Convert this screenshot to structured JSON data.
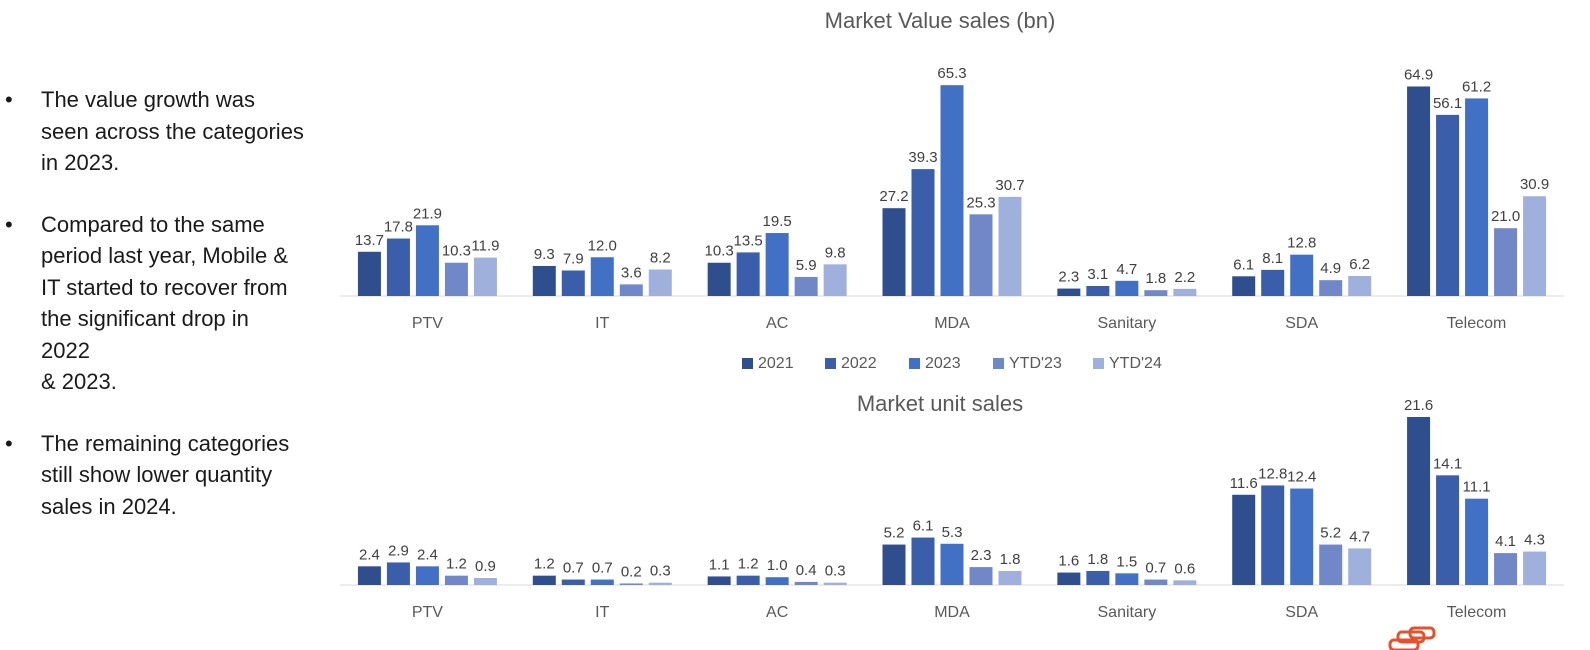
{
  "bullets": [
    {
      "text": "The value growth was\nseen across the categories\nin 2023."
    },
    {
      "text": "Compared to the same\nperiod last year, Mobile &\nIT started to recover from\nthe significant drop in\n2022\n& 2023."
    },
    {
      "text": "The remaining categories\nstill show lower quantity\nsales in 2024."
    }
  ],
  "bullet_char": "•",
  "chart_data": [
    {
      "type": "bar",
      "title": "Market Value sales (bn)",
      "categories": [
        "PTV",
        "IT",
        "AC",
        "MDA",
        "Sanitary",
        "SDA",
        "Telecom"
      ],
      "ylim": [
        0,
        70
      ],
      "grid": false,
      "legend": "bottom",
      "series": [
        {
          "name": "2021",
          "color": "#2f4e8d",
          "values": [
            13.7,
            9.3,
            10.3,
            27.2,
            2.3,
            6.1,
            64.9
          ],
          "labels": [
            "13.7",
            "9.3",
            "10.3",
            "27.2",
            "2.3",
            "6.1",
            "64.9"
          ]
        },
        {
          "name": "2022",
          "color": "#3a5eaa",
          "values": [
            17.8,
            7.9,
            13.5,
            39.3,
            3.1,
            8.1,
            56.1
          ],
          "labels": [
            "17.8",
            "7.9",
            "13.5",
            "39.3",
            "3.1",
            "8.1",
            "56.1"
          ]
        },
        {
          "name": "2023",
          "color": "#4170c4",
          "values": [
            21.9,
            12.0,
            19.5,
            65.3,
            4.7,
            12.8,
            61.2
          ],
          "labels": [
            "21.9",
            "12.0",
            "19.5",
            "65.3",
            "4.7",
            "12.8",
            "61.2"
          ]
        },
        {
          "name": "YTD'23",
          "color": "#7088c8",
          "values": [
            10.3,
            3.6,
            5.9,
            25.3,
            1.8,
            4.9,
            21.0
          ],
          "labels": [
            "10.3",
            "3.6",
            "5.9",
            "25.3",
            "1.8",
            "4.9",
            "21.0"
          ]
        },
        {
          "name": "YTD'24",
          "color": "#a0b0dc",
          "values": [
            11.9,
            8.2,
            9.8,
            30.7,
            2.2,
            6.2,
            30.9
          ],
          "labels": [
            "11.9",
            "8.2",
            "9.8",
            "30.7",
            "2.2",
            "6.2",
            "30.9"
          ]
        }
      ]
    },
    {
      "type": "bar",
      "title": "Market unit sales",
      "categories": [
        "PTV",
        "IT",
        "AC",
        "MDA",
        "Sanitary",
        "SDA",
        "Telecom"
      ],
      "ylim": [
        0,
        21.6
      ],
      "grid": false,
      "series": [
        {
          "name": "2021",
          "color": "#2f4e8d",
          "values": [
            2.4,
            1.2,
            1.1,
            5.2,
            1.6,
            11.6,
            21.6
          ],
          "labels": [
            "2.4",
            "1.2",
            "1.1",
            "5.2",
            "1.6",
            "11.6",
            "21.6"
          ]
        },
        {
          "name": "2022",
          "color": "#3a5eaa",
          "values": [
            2.9,
            0.7,
            1.2,
            6.1,
            1.8,
            12.8,
            14.1
          ],
          "labels": [
            "2.9",
            "0.7",
            "1.2",
            "6.1",
            "1.8",
            "12.8",
            "14.1"
          ]
        },
        {
          "name": "2023",
          "color": "#4170c4",
          "values": [
            2.4,
            0.7,
            1.0,
            5.3,
            1.5,
            12.4,
            11.1
          ],
          "labels": [
            "2.4",
            "0.7",
            "1.0",
            "5.3",
            "1.5",
            "12.4",
            "11.1"
          ]
        },
        {
          "name": "YTD'23",
          "color": "#7088c8",
          "values": [
            1.2,
            0.2,
            0.4,
            2.3,
            0.7,
            5.2,
            4.1
          ],
          "labels": [
            "1.2",
            "0.2",
            "0.4",
            "2.3",
            "0.7",
            "5.2",
            "4.1"
          ]
        },
        {
          "name": "YTD'24",
          "color": "#a0b0dc",
          "values": [
            0.9,
            0.3,
            0.3,
            1.8,
            0.6,
            4.7,
            4.3
          ],
          "labels": [
            "0.9",
            "0.3",
            "0.3",
            "1.8",
            "0.6",
            "4.7",
            "4.3"
          ]
        }
      ]
    }
  ]
}
